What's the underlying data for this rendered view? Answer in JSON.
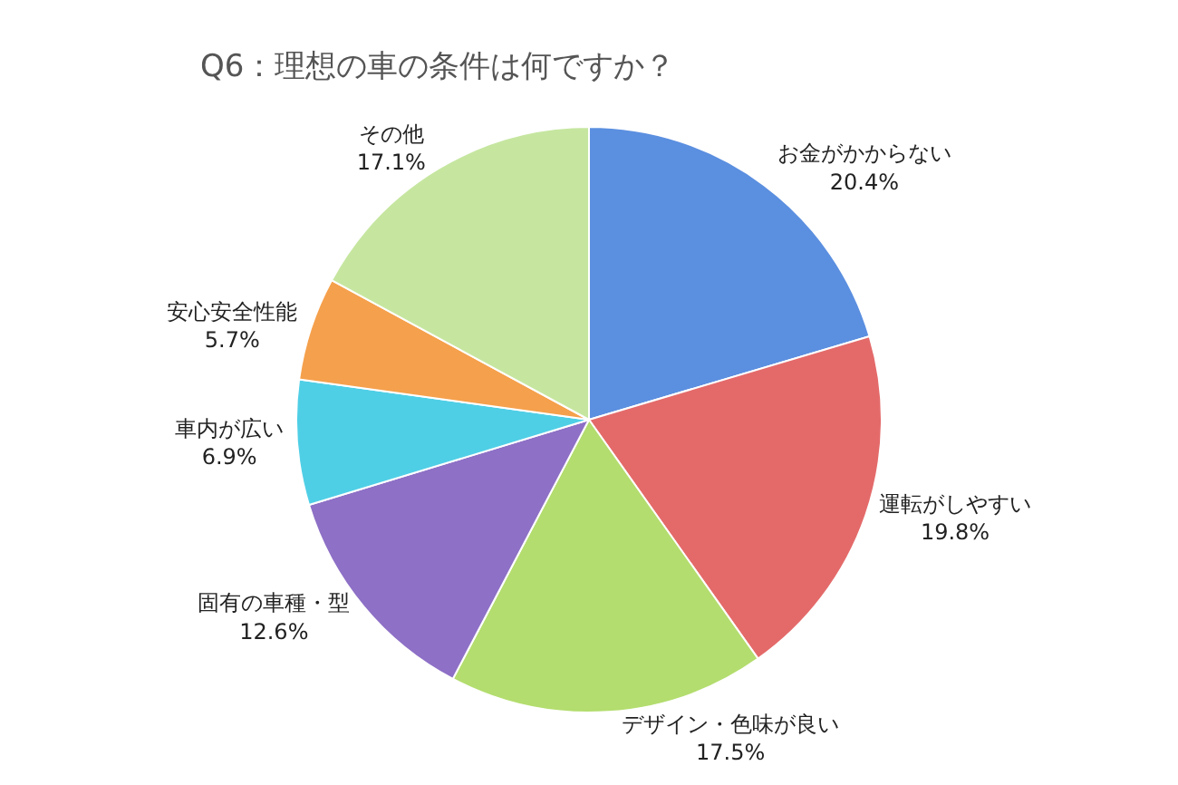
{
  "chart_data": {
    "type": "pie",
    "title": "Q6：理想の車の条件は何ですか？",
    "categories": [
      "お金がかからない",
      "運転がしやすい",
      "デザイン・色味が良い",
      "固有の車種・型",
      "車内が広い",
      "安心安全性能",
      "その他"
    ],
    "values": [
      20.4,
      19.8,
      17.5,
      12.6,
      6.9,
      5.7,
      17.1
    ],
    "value_labels": [
      "20.4%",
      "19.8%",
      "17.5%",
      "12.6%",
      "6.9%",
      "5.7%",
      "17.1%"
    ],
    "colors": [
      "#5b8fe0",
      "#e46a6a",
      "#b3dd6e",
      "#8e70c6",
      "#4fcfe6",
      "#f5a04c",
      "#c6e6a0"
    ],
    "legend": false
  }
}
